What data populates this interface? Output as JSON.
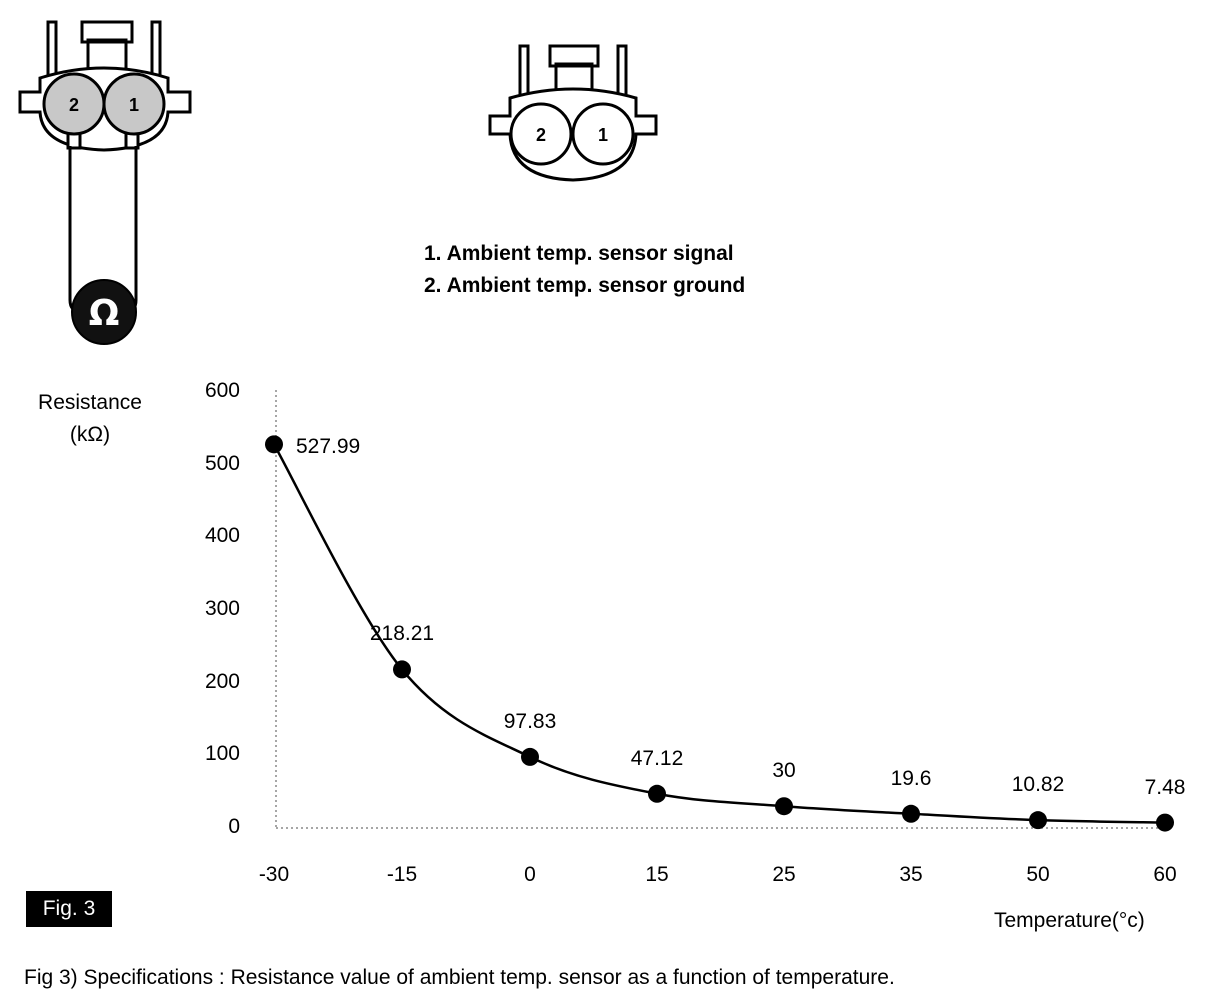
{
  "legend": {
    "pin1": "1. Ambient temp. sensor signal",
    "pin2": "2. Ambient temp. sensor ground"
  },
  "connector": {
    "pin1": "1",
    "pin2": "2"
  },
  "meter_symbol": "Ω",
  "fig_label": "Fig. 3",
  "caption": "Fig 3) Specifications : Resistance value of ambient temp. sensor as a function of temperature.",
  "chart_data": {
    "type": "line",
    "xlabel": "Temperature(°c)",
    "ylabel_line1": "Resistance",
    "ylabel_line2": "(kΩ)",
    "categories": [
      "-30",
      "-15",
      "0",
      "15",
      "25",
      "35",
      "50",
      "60"
    ],
    "values": [
      527.99,
      218.21,
      97.83,
      47.12,
      30,
      19.6,
      10.82,
      7.48
    ],
    "value_labels": [
      "527.99",
      "218.21",
      "97.83",
      "47.12",
      "30",
      "19.6",
      "10.82",
      "7.48"
    ],
    "yticks": [
      "600",
      "500",
      "400",
      "300",
      "200",
      "100",
      "0"
    ],
    "ylim": [
      0,
      600
    ],
    "grid": false
  }
}
